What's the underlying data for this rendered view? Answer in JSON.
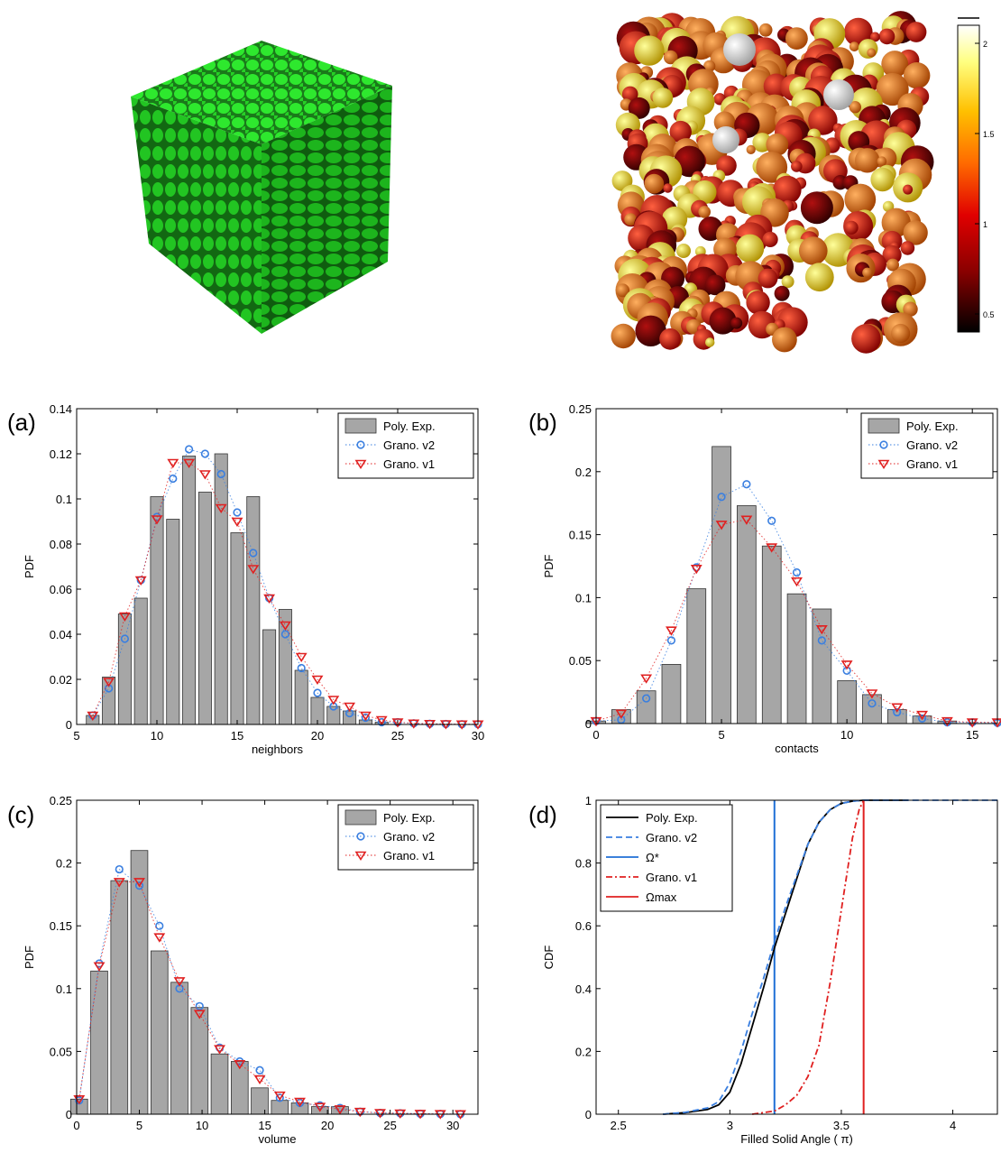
{
  "figures": {
    "render_left": {
      "description_icon": "green-packed-cube-render"
    },
    "render_right": {
      "description_icon": "colored-sphere-packing-render"
    },
    "colorbar": {
      "ticks": [
        "2",
        "1.5",
        "1",
        "0.5"
      ],
      "values": [
        2,
        1.5,
        1,
        0.5
      ],
      "range": [
        0.4,
        2.1
      ],
      "colors": [
        "#000000",
        "#8b0000",
        "#e00000",
        "#ff6a00",
        "#ffc000",
        "#ffff80",
        "#ffffff"
      ]
    }
  },
  "colors": {
    "bar": "#a6a6a6",
    "bar_edge": "#333333",
    "v2": "#3a7fe0",
    "v1": "#e02020",
    "cube": "#1fd11f"
  },
  "chart_data": [
    {
      "panel": "(a)",
      "type": "bar",
      "xlabel": "neighbors",
      "ylabel": "PDF",
      "xlim": [
        5,
        30
      ],
      "ylim": [
        0,
        0.14
      ],
      "xticks": [
        5,
        10,
        15,
        20,
        25,
        30
      ],
      "yticks": [
        0,
        0.02,
        0.04,
        0.06,
        0.08,
        0.1,
        0.12,
        0.14
      ],
      "ytick_labels": [
        "0",
        "0.02",
        "0.04",
        "0.06",
        "0.08",
        "0.1",
        "0.12",
        "0.14"
      ],
      "bar_width": 0.8,
      "legend": [
        "Poly. Exp.",
        "Grano. v2",
        "Grano. v1"
      ],
      "bars": {
        "name": "Poly. Exp.",
        "x": [
          6,
          7,
          8,
          9,
          10,
          11,
          12,
          13,
          14,
          15,
          16,
          17,
          18,
          19,
          20,
          21,
          22,
          23,
          24
        ],
        "values": [
          0.004,
          0.021,
          0.049,
          0.056,
          0.101,
          0.091,
          0.119,
          0.103,
          0.12,
          0.085,
          0.101,
          0.042,
          0.051,
          0.024,
          0.012,
          0.008,
          0.006,
          0.002,
          0.001
        ]
      },
      "series": [
        {
          "name": "Grano. v2",
          "marker": "circle",
          "x": [
            6,
            7,
            8,
            9,
            10,
            11,
            12,
            13,
            14,
            15,
            16,
            17,
            18,
            19,
            20,
            21,
            22,
            23,
            24,
            25,
            26,
            27,
            28,
            29,
            30
          ],
          "values": [
            0.004,
            0.016,
            0.038,
            0.064,
            0.092,
            0.109,
            0.122,
            0.12,
            0.111,
            0.094,
            0.076,
            0.056,
            0.04,
            0.025,
            0.014,
            0.008,
            0.005,
            0.003,
            0.001,
            0.001,
            0.0005,
            0.0003,
            0.0002,
            0.0001,
            0.0001
          ]
        },
        {
          "name": "Grano. v1",
          "marker": "triangle-down",
          "x": [
            6,
            7,
            8,
            9,
            10,
            11,
            12,
            13,
            14,
            15,
            16,
            17,
            18,
            19,
            20,
            21,
            22,
            23,
            24,
            25,
            26,
            27,
            28,
            29,
            30
          ],
          "values": [
            0.004,
            0.019,
            0.048,
            0.064,
            0.091,
            0.116,
            0.116,
            0.111,
            0.096,
            0.09,
            0.069,
            0.056,
            0.044,
            0.03,
            0.02,
            0.011,
            0.008,
            0.004,
            0.002,
            0.001,
            0.0005,
            0.0003,
            0.0002,
            0.0001,
            0.0001
          ]
        }
      ]
    },
    {
      "panel": "(b)",
      "type": "bar",
      "xlabel": "contacts",
      "ylabel": "PDF",
      "xlim": [
        0,
        16
      ],
      "ylim": [
        0,
        0.25
      ],
      "xticks": [
        0,
        5,
        10,
        15
      ],
      "yticks": [
        0,
        0.05,
        0.1,
        0.15,
        0.2,
        0.25
      ],
      "ytick_labels": [
        "0",
        "0.05",
        "0.1",
        "0.15",
        "0.2",
        "0.25"
      ],
      "bar_width": 0.75,
      "legend": [
        "Poly. Exp.",
        "Grano. v2",
        "Grano. v1"
      ],
      "bars": {
        "name": "Poly. Exp.",
        "x": [
          0,
          1,
          2,
          3,
          4,
          5,
          6,
          7,
          8,
          9,
          10,
          11,
          12,
          13,
          14
        ],
        "values": [
          0.002,
          0.011,
          0.026,
          0.047,
          0.107,
          0.22,
          0.173,
          0.141,
          0.103,
          0.091,
          0.034,
          0.023,
          0.011,
          0.006,
          0.002
        ]
      },
      "series": [
        {
          "name": "Grano. v2",
          "marker": "circle",
          "x": [
            0,
            1,
            2,
            3,
            4,
            5,
            6,
            7,
            8,
            9,
            10,
            11,
            12,
            13,
            14,
            15,
            16
          ],
          "values": [
            0.002,
            0.003,
            0.02,
            0.066,
            0.124,
            0.18,
            0.19,
            0.161,
            0.12,
            0.066,
            0.042,
            0.016,
            0.009,
            0.004,
            0.001,
            0.001,
            0.0005
          ]
        },
        {
          "name": "Grano. v1",
          "marker": "triangle-down",
          "x": [
            0,
            1,
            2,
            3,
            4,
            5,
            6,
            7,
            8,
            9,
            10,
            11,
            12,
            13,
            14,
            15,
            16
          ],
          "values": [
            0.002,
            0.008,
            0.036,
            0.074,
            0.123,
            0.158,
            0.162,
            0.14,
            0.113,
            0.075,
            0.047,
            0.024,
            0.013,
            0.007,
            0.002,
            0.001,
            0.001
          ]
        }
      ]
    },
    {
      "panel": "(c)",
      "type": "bar",
      "xlabel": "volume",
      "ylabel": "PDF",
      "xlim": [
        0,
        32
      ],
      "ylim": [
        0,
        0.25
      ],
      "xticks": [
        0,
        5,
        10,
        15,
        20,
        25,
        30
      ],
      "yticks": [
        0,
        0.05,
        0.1,
        0.15,
        0.2,
        0.25
      ],
      "ytick_labels": [
        "0",
        "0.05",
        "0.1",
        "0.15",
        "0.2",
        "0.25"
      ],
      "bar_width": 1.35,
      "legend": [
        "Poly. Exp.",
        "Grano. v2",
        "Grano. v1"
      ],
      "bars": {
        "name": "Poly. Exp.",
        "x": [
          0.2,
          1.8,
          3.4,
          5.0,
          6.6,
          8.2,
          9.8,
          11.4,
          13.0,
          14.6,
          16.2,
          17.8,
          19.4,
          21.0
        ],
        "values": [
          0.012,
          0.114,
          0.186,
          0.21,
          0.13,
          0.105,
          0.085,
          0.048,
          0.042,
          0.021,
          0.011,
          0.009,
          0.006,
          0.006
        ]
      },
      "series": [
        {
          "name": "Grano. v2",
          "marker": "circle",
          "x": [
            0.2,
            1.8,
            3.4,
            5.0,
            6.6,
            8.2,
            9.8,
            11.4,
            13.0,
            14.6,
            16.2,
            17.8,
            19.4,
            21.0,
            22.6,
            24.2,
            25.8,
            27.4,
            29.0,
            30.6
          ],
          "values": [
            0.011,
            0.12,
            0.195,
            0.182,
            0.15,
            0.1,
            0.086,
            0.053,
            0.042,
            0.035,
            0.013,
            0.009,
            0.007,
            0.005,
            0.002,
            0.001,
            0.0007,
            0.0004,
            0.0002,
            0.0001
          ]
        },
        {
          "name": "Grano. v1",
          "marker": "triangle-down",
          "x": [
            0.2,
            1.8,
            3.4,
            5.0,
            6.6,
            8.2,
            9.8,
            11.4,
            13.0,
            14.6,
            16.2,
            17.8,
            19.4,
            21.0,
            22.6,
            24.2,
            25.8,
            27.4,
            29.0,
            30.6
          ],
          "values": [
            0.012,
            0.118,
            0.185,
            0.185,
            0.141,
            0.106,
            0.08,
            0.052,
            0.04,
            0.028,
            0.015,
            0.01,
            0.006,
            0.004,
            0.002,
            0.001,
            0.0007,
            0.0004,
            0.0002,
            0.0001
          ]
        }
      ]
    },
    {
      "panel": "(d)",
      "type": "line",
      "xlabel": "Filled Solid Angle ( π)",
      "ylabel": "CDF",
      "xlim": [
        2.4,
        4.2
      ],
      "ylim": [
        0,
        1
      ],
      "xticks": [
        2.5,
        3,
        3.5,
        4
      ],
      "xtick_labels": [
        "2.5",
        "3",
        "3.5",
        "4"
      ],
      "yticks": [
        0,
        0.2,
        0.4,
        0.6,
        0.8,
        1
      ],
      "ytick_labels": [
        "0",
        "0.2",
        "0.4",
        "0.6",
        "0.8",
        "1"
      ],
      "legend": [
        "Poly. Exp.",
        "Grano. v2",
        "Ω*",
        "Grano. v1",
        "Ωmax"
      ],
      "series": [
        {
          "name": "Poly. Exp.",
          "style": "solid",
          "color": "#000000",
          "x": [
            2.7,
            2.8,
            2.9,
            2.95,
            3.0,
            3.05,
            3.1,
            3.15,
            3.2,
            3.25,
            3.3,
            3.35,
            3.4,
            3.45,
            3.5,
            3.55,
            3.6,
            3.7,
            3.8
          ],
          "values": [
            0,
            0.005,
            0.015,
            0.03,
            0.07,
            0.16,
            0.28,
            0.4,
            0.53,
            0.64,
            0.75,
            0.86,
            0.93,
            0.97,
            0.99,
            0.997,
            1,
            1,
            1
          ]
        },
        {
          "name": "Grano. v2",
          "style": "dashed",
          "color": "#3a7fe0",
          "x": [
            2.7,
            2.8,
            2.9,
            2.95,
            3.0,
            3.05,
            3.1,
            3.15,
            3.2,
            3.25,
            3.3,
            3.35,
            3.4,
            3.45,
            3.5,
            3.55,
            3.6,
            3.7,
            3.8,
            4.2
          ],
          "values": [
            0,
            0.006,
            0.02,
            0.04,
            0.1,
            0.2,
            0.32,
            0.43,
            0.55,
            0.66,
            0.76,
            0.86,
            0.93,
            0.97,
            0.99,
            0.997,
            1,
            1,
            1,
            1
          ]
        },
        {
          "name": "Grano. v1",
          "style": "dashdot",
          "color": "#e02020",
          "x": [
            3.1,
            3.2,
            3.25,
            3.3,
            3.35,
            3.4,
            3.45,
            3.5,
            3.55,
            3.58,
            3.6
          ],
          "values": [
            0,
            0.01,
            0.03,
            0.06,
            0.12,
            0.22,
            0.42,
            0.65,
            0.88,
            0.97,
            1
          ]
        }
      ],
      "vlines": [
        {
          "name": "Ω*",
          "x": 3.2,
          "color": "#1f6fd6"
        },
        {
          "name": "Ωmax",
          "x": 3.6,
          "color": "#e02020"
        }
      ]
    }
  ]
}
